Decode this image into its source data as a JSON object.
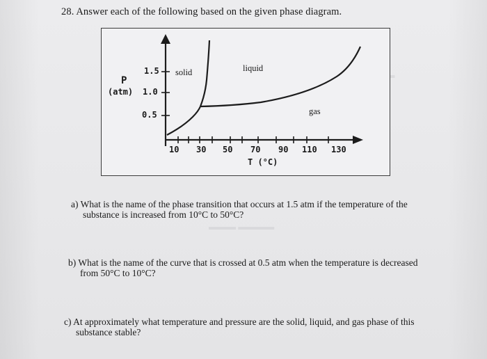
{
  "question": {
    "header": "28. Answer each of the following based on the given phase diagram."
  },
  "diagram": {
    "y_axis_title_top": "P",
    "y_axis_title_bottom": "(atm)",
    "y_ticks": [
      "1.5",
      "1.0",
      "0.5"
    ],
    "x_ticks": [
      "10",
      "30",
      "50",
      "70",
      "90",
      "110",
      "130"
    ],
    "x_axis_title": "T (°C)",
    "region_labels": {
      "solid": "solid",
      "liquid": "liquid",
      "gas": "gas"
    },
    "colors": {
      "curve": "#1c1c1c",
      "frame": "#3a3a3a"
    }
  },
  "parts": [
    {
      "label": "a)",
      "line1": "What is the name of the phase transition that occurs at 1.5 atm if the temperature of the",
      "line2": "substance is increased from 10°C to 50°C?"
    },
    {
      "label": "b)",
      "line1": "What is the name of the curve that is crossed at 0.5 atm when the temperature is decreased",
      "line2": "from 50°C to 10°C?"
    },
    {
      "label": "c)",
      "line1": "At approximately what temperature and pressure are the solid, liquid, and gas phase of this",
      "line2": "substance stable?"
    }
  ]
}
